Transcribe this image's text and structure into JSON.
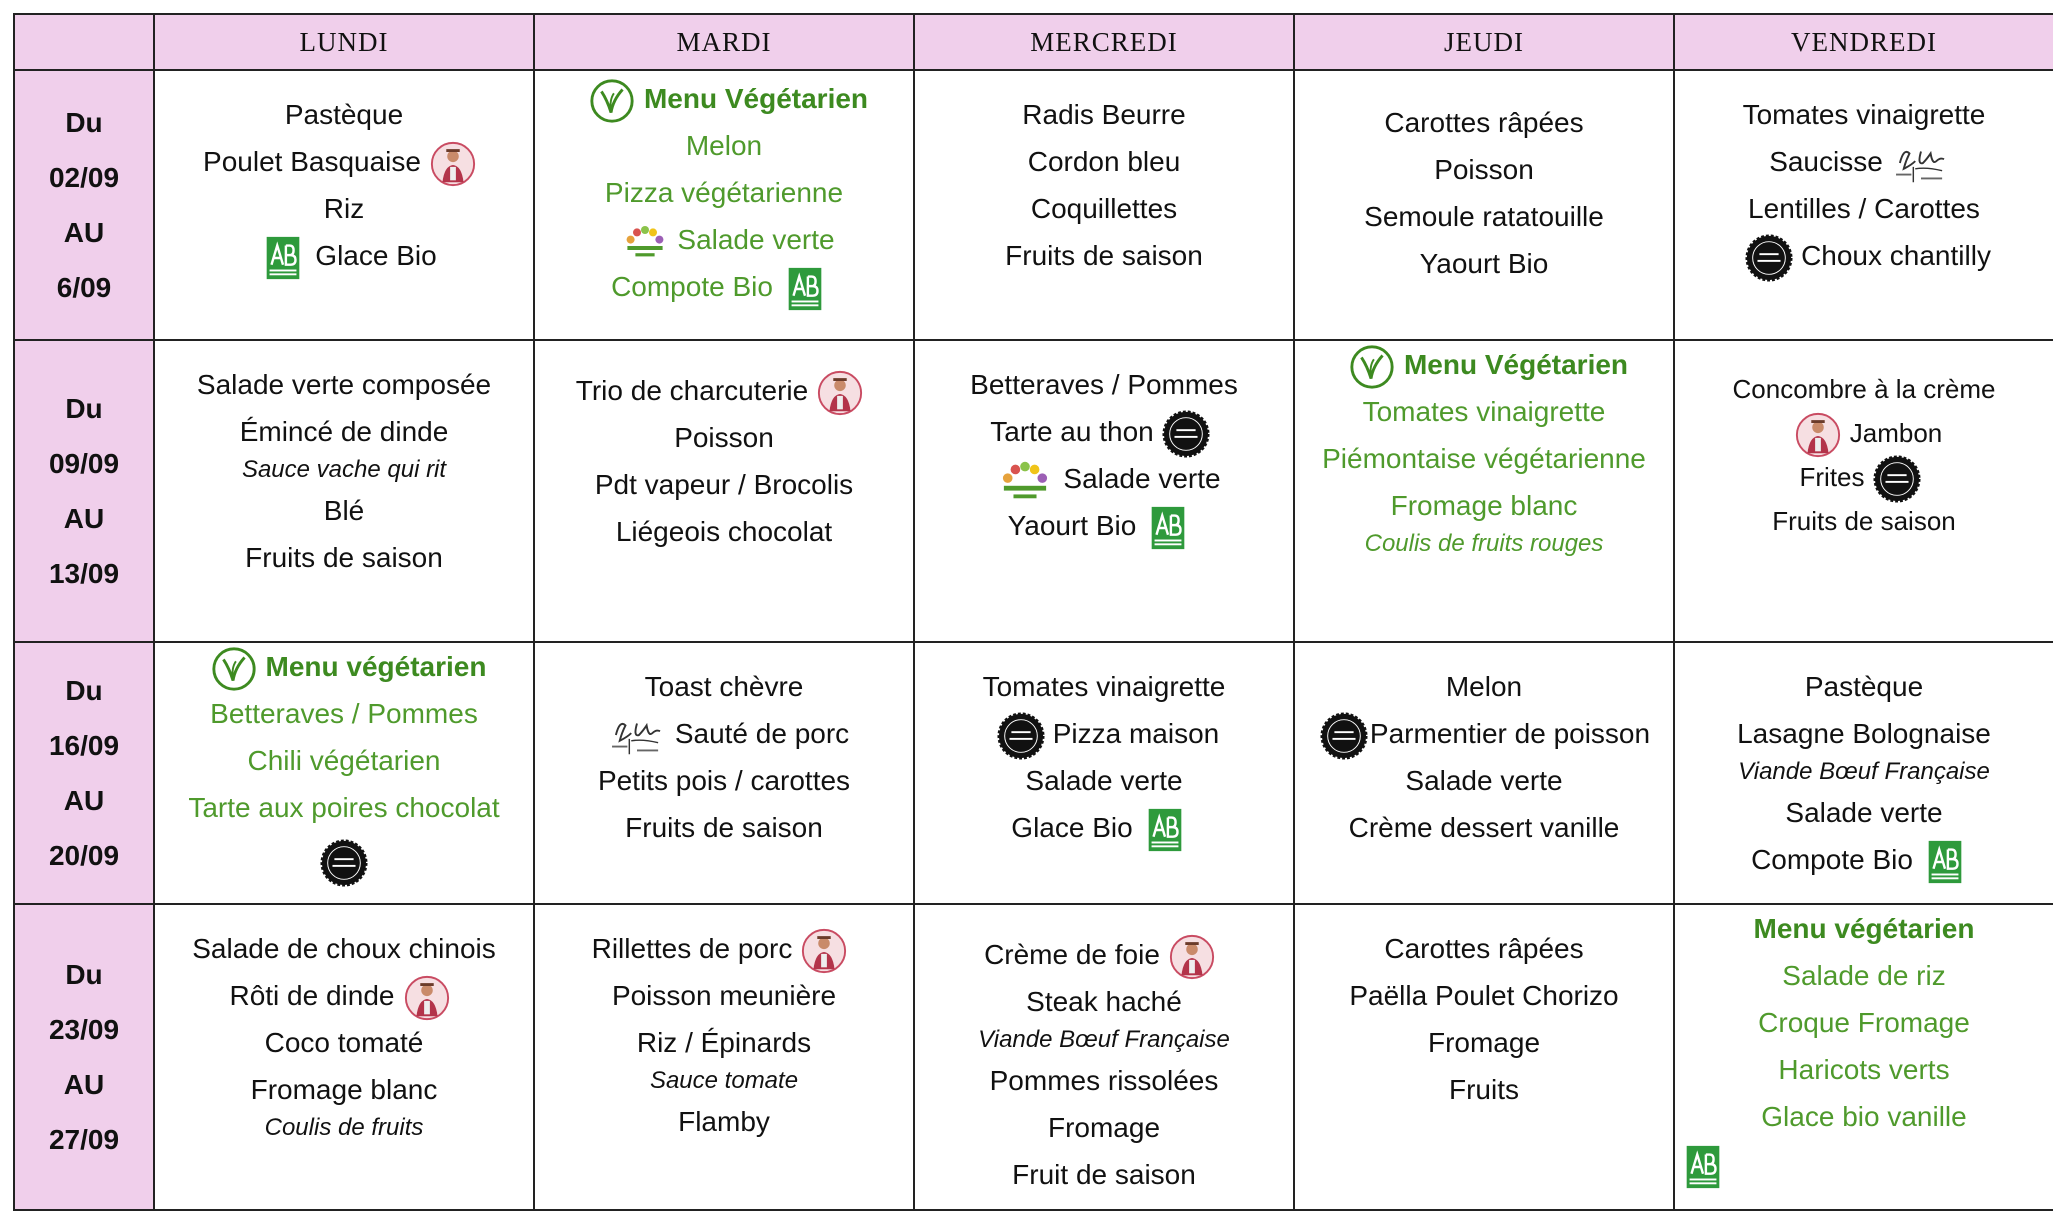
{
  "header": {
    "days": [
      "LUNDI",
      "MARDI",
      "MERCREDI",
      "JEUDI",
      "VENDREDI"
    ]
  },
  "weeks": [
    {
      "dates": [
        "Du",
        "02/09",
        "AU",
        "6/09"
      ],
      "days": [
        [
          {
            "text": "Pastèque"
          },
          {
            "text": "Poulet Basquaise"
          },
          {
            "text": "Riz"
          },
          {
            "text": "Glace Bio"
          }
        ],
        [
          {
            "text": "Menu Végétarien",
            "style": "green-bold"
          },
          {
            "text": "Melon",
            "style": "green"
          },
          {
            "text": "Pizza végétarienne",
            "style": "green"
          },
          {
            "text": "Salade verte",
            "style": "green"
          },
          {
            "text": "Compote Bio",
            "style": "green"
          }
        ],
        [
          {
            "text": "Radis Beurre"
          },
          {
            "text": "Cordon bleu"
          },
          {
            "text": "Coquillettes"
          },
          {
            "text": "Fruits de saison"
          }
        ],
        [
          {
            "text": "Carottes râpées"
          },
          {
            "text": "Poisson"
          },
          {
            "text": "Semoule ratatouille"
          },
          {
            "text": "Yaourt Bio"
          }
        ],
        [
          {
            "text": "Tomates vinaigrette"
          },
          {
            "text": "Saucisse"
          },
          {
            "text": "Lentilles / Carottes"
          },
          {
            "text": "Choux chantilly"
          }
        ]
      ]
    },
    {
      "dates": [
        "Du",
        "09/09",
        "AU",
        "13/09"
      ],
      "days": [
        [
          {
            "text": "Salade verte composée"
          },
          {
            "text": "Émincé de dinde"
          },
          {
            "text": "Sauce vache qui rit",
            "style": "italic"
          },
          {
            "text": "Blé"
          },
          {
            "text": "Fruits de saison"
          }
        ],
        [
          {
            "text": "Trio de charcuterie"
          },
          {
            "text": "Poisson"
          },
          {
            "text": "Pdt vapeur / Brocolis"
          },
          {
            "text": "Liégeois chocolat"
          }
        ],
        [
          {
            "text": "Betteraves / Pommes"
          },
          {
            "text": "Tarte au thon"
          },
          {
            "text": "Salade verte"
          },
          {
            "text": "Yaourt Bio"
          }
        ],
        [
          {
            "text": "Menu Végétarien",
            "style": "green-bold"
          },
          {
            "text": "Tomates vinaigrette",
            "style": "green"
          },
          {
            "text": "Piémontaise végétarienne",
            "style": "green"
          },
          {
            "text": "Fromage blanc",
            "style": "green"
          },
          {
            "text": "Coulis de fruits rouges",
            "style": "green-italic"
          }
        ],
        [
          {
            "text": "Concombre à la crème"
          },
          {
            "text": "Jambon"
          },
          {
            "text": "Frites"
          },
          {
            "text": "Fruits de saison"
          }
        ]
      ]
    },
    {
      "dates": [
        "Du",
        "16/09",
        "AU",
        "20/09"
      ],
      "days": [
        [
          {
            "text": "Menu végétarien",
            "style": "green-bold"
          },
          {
            "text": "Betteraves / Pommes",
            "style": "green"
          },
          {
            "text": "Chili végétarien",
            "style": "green"
          },
          {
            "text": "Tarte aux poires chocolat",
            "style": "green"
          }
        ],
        [
          {
            "text": "Toast chèvre"
          },
          {
            "text": "Sauté de porc"
          },
          {
            "text": "Petits pois / carottes"
          },
          {
            "text": "Fruits de saison"
          }
        ],
        [
          {
            "text": "Tomates vinaigrette"
          },
          {
            "text": "Pizza maison"
          },
          {
            "text": "Salade verte"
          },
          {
            "text": "Glace Bio"
          }
        ],
        [
          {
            "text": "Melon"
          },
          {
            "text": "Parmentier de poisson"
          },
          {
            "text": "Salade verte"
          },
          {
            "text": "Crème dessert vanille"
          }
        ],
        [
          {
            "text": "Pastèque"
          },
          {
            "text": "Lasagne Bolognaise"
          },
          {
            "text": "Viande Bœuf Française",
            "style": "italic"
          },
          {
            "text": "Salade verte"
          },
          {
            "text": "Compote Bio"
          }
        ]
      ]
    },
    {
      "dates": [
        "Du",
        "23/09",
        "AU",
        "27/09"
      ],
      "days": [
        [
          {
            "text": "Salade de choux chinois"
          },
          {
            "text": "Rôti de dinde"
          },
          {
            "text": "Coco tomaté"
          },
          {
            "text": "Fromage blanc"
          },
          {
            "text": "Coulis de fruits",
            "style": "italic"
          }
        ],
        [
          {
            "text": "Rillettes de porc"
          },
          {
            "text": "Poisson meunière"
          },
          {
            "text": "Riz / Épinards"
          },
          {
            "text": "Sauce tomate",
            "style": "italic"
          },
          {
            "text": "Flamby"
          }
        ],
        [
          {
            "text": "Crème de foie"
          },
          {
            "text": "Steak haché"
          },
          {
            "text": "Viande Bœuf Française",
            "style": "italic"
          },
          {
            "text": "Pommes rissolées"
          },
          {
            "text": "Fromage"
          },
          {
            "text": "Fruit de saison"
          }
        ],
        [
          {
            "text": "Carottes râpées"
          },
          {
            "text": "Paëlla Poulet Chorizo"
          },
          {
            "text": "Fromage"
          },
          {
            "text": "Fruits"
          }
        ],
        [
          {
            "text": "Menu végétarien",
            "style": "green-bold"
          },
          {
            "text": "Salade de riz",
            "style": "green"
          },
          {
            "text": "Croque Fromage",
            "style": "green"
          },
          {
            "text": "Haricots verts",
            "style": "green"
          },
          {
            "text": "Glace bio vanille",
            "style": "green"
          }
        ]
      ]
    }
  ]
}
